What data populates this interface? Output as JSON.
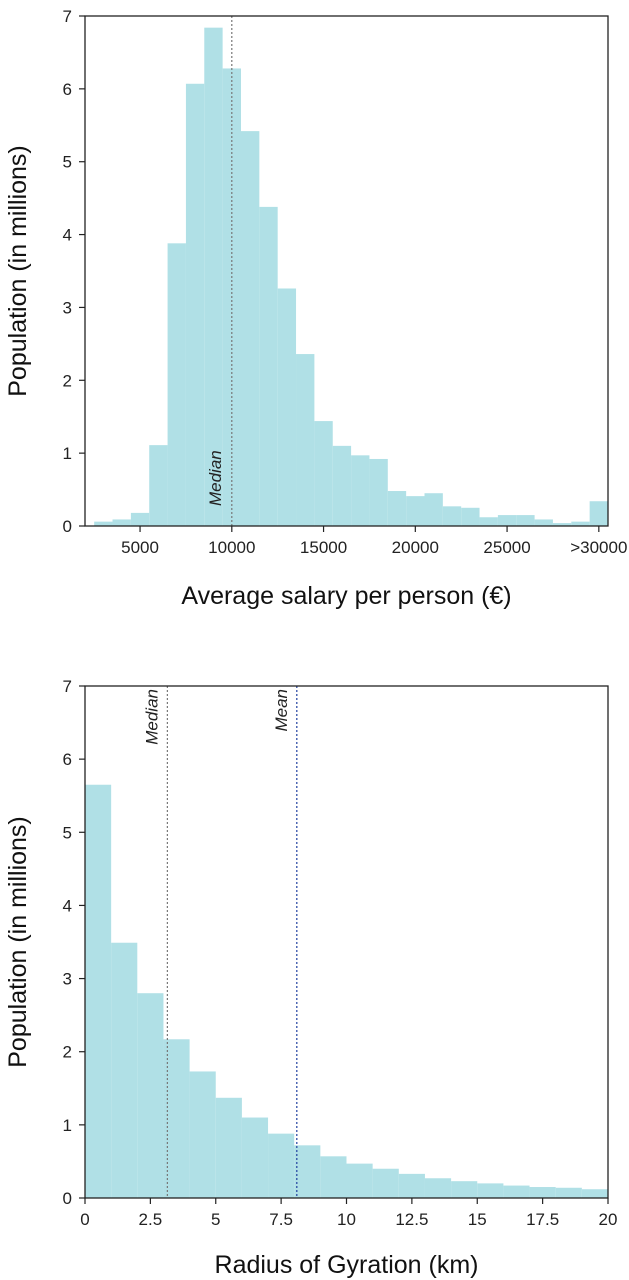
{
  "chart_data": [
    {
      "type": "histogram",
      "xlabel": "Average salary per person (€)",
      "ylabel": "Population (in millions)",
      "xlim": [
        2000,
        30500
      ],
      "ylim": [
        0,
        7
      ],
      "xticks": [
        {
          "value": 5000,
          "label": "5000"
        },
        {
          "value": 10000,
          "label": "10000"
        },
        {
          "value": 15000,
          "label": "15000"
        },
        {
          "value": 20000,
          "label": "20000"
        },
        {
          "value": 25000,
          "label": "25000"
        },
        {
          "value": 30000,
          "label": ">30000"
        }
      ],
      "yticks": [
        0,
        1,
        2,
        3,
        4,
        5,
        6,
        7
      ],
      "bar_color": "#b0e0e6",
      "bins": [
        {
          "x0": 2500,
          "x1": 3500,
          "value": 0.06
        },
        {
          "x0": 3500,
          "x1": 4500,
          "value": 0.09
        },
        {
          "x0": 4500,
          "x1": 5500,
          "value": 0.18
        },
        {
          "x0": 5500,
          "x1": 6500,
          "value": 1.11
        },
        {
          "x0": 6500,
          "x1": 7500,
          "value": 3.88
        },
        {
          "x0": 7500,
          "x1": 8500,
          "value": 6.07
        },
        {
          "x0": 8500,
          "x1": 9500,
          "value": 6.84
        },
        {
          "x0": 9500,
          "x1": 10500,
          "value": 6.28
        },
        {
          "x0": 10500,
          "x1": 11500,
          "value": 5.42
        },
        {
          "x0": 11500,
          "x1": 12500,
          "value": 4.38
        },
        {
          "x0": 12500,
          "x1": 13500,
          "value": 3.26
        },
        {
          "x0": 13500,
          "x1": 14500,
          "value": 2.36
        },
        {
          "x0": 14500,
          "x1": 15500,
          "value": 1.44
        },
        {
          "x0": 15500,
          "x1": 16500,
          "value": 1.1
        },
        {
          "x0": 16500,
          "x1": 17500,
          "value": 0.97
        },
        {
          "x0": 17500,
          "x1": 18500,
          "value": 0.92
        },
        {
          "x0": 18500,
          "x1": 19500,
          "value": 0.48
        },
        {
          "x0": 19500,
          "x1": 20500,
          "value": 0.41
        },
        {
          "x0": 20500,
          "x1": 21500,
          "value": 0.45
        },
        {
          "x0": 21500,
          "x1": 22500,
          "value": 0.27
        },
        {
          "x0": 22500,
          "x1": 23500,
          "value": 0.25
        },
        {
          "x0": 23500,
          "x1": 24500,
          "value": 0.12
        },
        {
          "x0": 24500,
          "x1": 25500,
          "value": 0.15
        },
        {
          "x0": 25500,
          "x1": 26500,
          "value": 0.15
        },
        {
          "x0": 26500,
          "x1": 27500,
          "value": 0.09
        },
        {
          "x0": 27500,
          "x1": 28500,
          "value": 0.04
        },
        {
          "x0": 28500,
          "x1": 29500,
          "value": 0.06
        },
        {
          "x0": 29500,
          "x1": 30500,
          "value": 0.34
        }
      ],
      "annotations": [
        {
          "text": "Median",
          "x": 10000,
          "line_color": "#777777"
        }
      ]
    },
    {
      "type": "histogram",
      "xlabel": "Radius of Gyration (km)",
      "ylabel": "Population (in millions)",
      "xlim": [
        0,
        20
      ],
      "ylim": [
        0,
        7
      ],
      "xticks": [
        {
          "value": 0,
          "label": "0"
        },
        {
          "value": 2.5,
          "label": "2.5"
        },
        {
          "value": 5,
          "label": "5"
        },
        {
          "value": 7.5,
          "label": "7.5"
        },
        {
          "value": 10,
          "label": "10"
        },
        {
          "value": 12.5,
          "label": "12.5"
        },
        {
          "value": 15,
          "label": "15"
        },
        {
          "value": 17.5,
          "label": "17.5"
        },
        {
          "value": 20,
          "label": "20"
        }
      ],
      "yticks": [
        0,
        1,
        2,
        3,
        4,
        5,
        6,
        7
      ],
      "bar_color": "#b0e0e6",
      "bins": [
        {
          "x0": 0,
          "x1": 1,
          "value": 5.65
        },
        {
          "x0": 1,
          "x1": 2,
          "value": 3.49
        },
        {
          "x0": 2,
          "x1": 3,
          "value": 2.8
        },
        {
          "x0": 3,
          "x1": 4,
          "value": 2.17
        },
        {
          "x0": 4,
          "x1": 5,
          "value": 1.73
        },
        {
          "x0": 5,
          "x1": 6,
          "value": 1.37
        },
        {
          "x0": 6,
          "x1": 7,
          "value": 1.1
        },
        {
          "x0": 7,
          "x1": 8,
          "value": 0.88
        },
        {
          "x0": 8,
          "x1": 9,
          "value": 0.72
        },
        {
          "x0": 9,
          "x1": 10,
          "value": 0.57
        },
        {
          "x0": 10,
          "x1": 11,
          "value": 0.47
        },
        {
          "x0": 11,
          "x1": 12,
          "value": 0.4
        },
        {
          "x0": 12,
          "x1": 13,
          "value": 0.33
        },
        {
          "x0": 13,
          "x1": 14,
          "value": 0.27
        },
        {
          "x0": 14,
          "x1": 15,
          "value": 0.23
        },
        {
          "x0": 15,
          "x1": 16,
          "value": 0.2
        },
        {
          "x0": 16,
          "x1": 17,
          "value": 0.17
        },
        {
          "x0": 17,
          "x1": 18,
          "value": 0.15
        },
        {
          "x0": 18,
          "x1": 19,
          "value": 0.14
        },
        {
          "x0": 19,
          "x1": 20,
          "value": 0.12
        }
      ],
      "annotations": [
        {
          "text": "Median",
          "x": 3.15,
          "line_color": "#777777"
        },
        {
          "text": "Mean",
          "x": 8.1,
          "line_color": "#1f3f9f"
        }
      ]
    }
  ]
}
